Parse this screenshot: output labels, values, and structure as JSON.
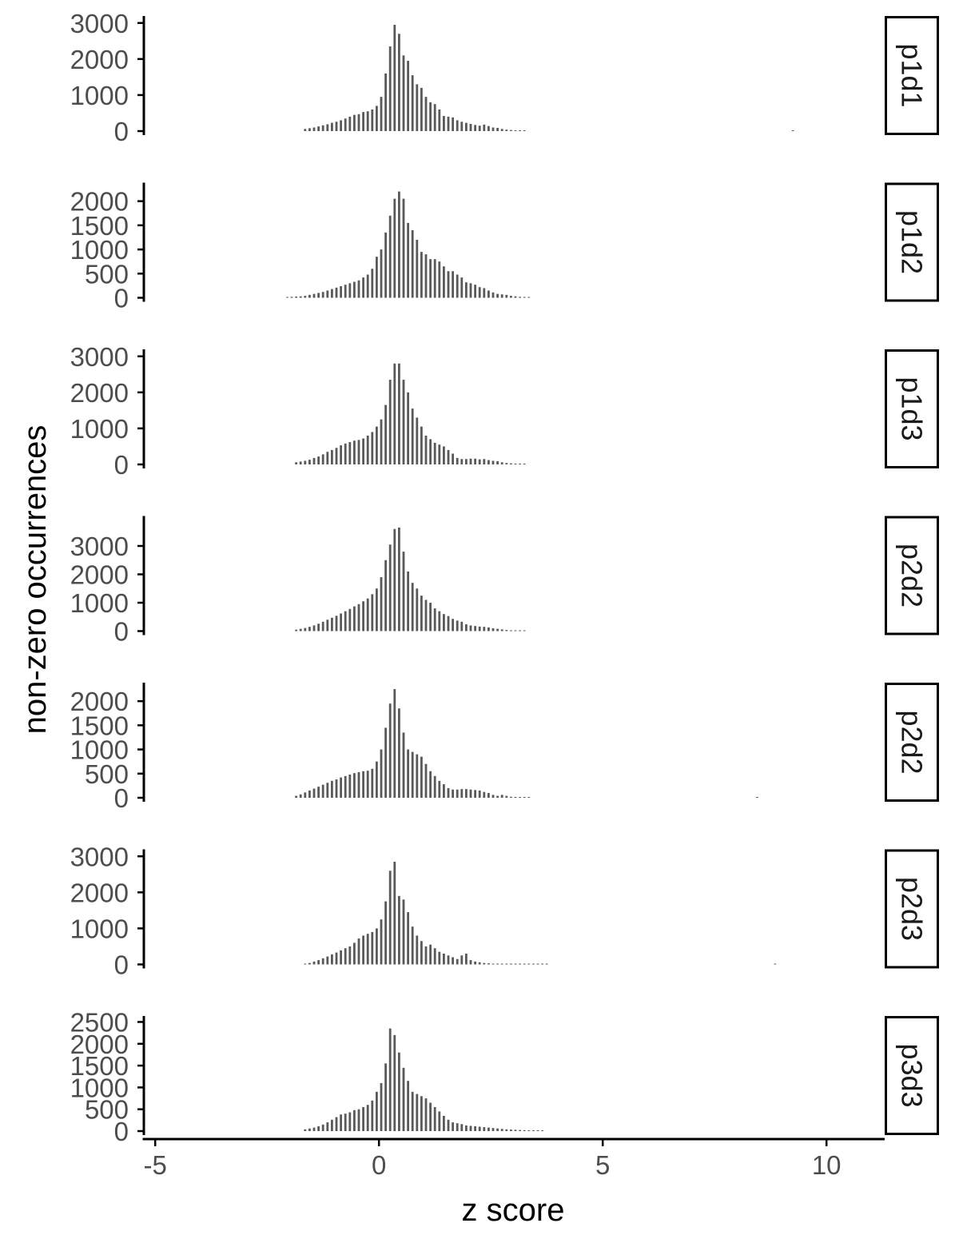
{
  "chart_data": {
    "type": "bar",
    "subtype": "faceted-histogram",
    "xlabel": "z score",
    "ylabel": "non-zero occurrences",
    "xlim": [
      -5.2,
      11.3
    ],
    "x_ticks": [
      -5,
      0,
      5,
      10
    ],
    "x_tick_labels": [
      "-5",
      "0",
      "5",
      "10"
    ],
    "bin_width": 0.1,
    "bar_color": "#595959",
    "strip_border_color": "#000000",
    "grid": false,
    "facets": [
      {
        "label": "p1d1",
        "ylim": [
          0,
          3150
        ],
        "y_ticks": [
          0,
          1000,
          2000,
          3000
        ],
        "y_tick_labels": [
          "0",
          "1000",
          "2000",
          "3000"
        ],
        "x": [
          -1.65,
          -1.55,
          -1.45,
          -1.35,
          -1.25,
          -1.15,
          -1.05,
          -0.95,
          -0.85,
          -0.75,
          -0.65,
          -0.55,
          -0.45,
          -0.35,
          -0.25,
          -0.15,
          -0.05,
          0.05,
          0.15,
          0.25,
          0.35,
          0.45,
          0.55,
          0.65,
          0.75,
          0.85,
          0.95,
          1.05,
          1.15,
          1.25,
          1.35,
          1.45,
          1.55,
          1.65,
          1.75,
          1.85,
          1.95,
          2.05,
          2.15,
          2.25,
          2.35,
          2.45,
          2.55,
          2.65,
          2.75,
          2.85,
          2.95,
          3.05,
          3.15,
          3.25,
          9.25
        ],
        "values": [
          60,
          80,
          100,
          130,
          160,
          190,
          230,
          260,
          300,
          350,
          400,
          450,
          470,
          530,
          550,
          600,
          700,
          950,
          1600,
          2350,
          2950,
          2700,
          2100,
          1950,
          1550,
          1300,
          1200,
          950,
          800,
          750,
          600,
          420,
          400,
          380,
          300,
          260,
          230,
          200,
          170,
          150,
          180,
          140,
          100,
          90,
          60,
          40,
          30,
          20,
          15,
          8,
          10
        ]
      },
      {
        "label": "p1d2",
        "ylim": [
          0,
          2350
        ],
        "y_ticks": [
          0,
          500,
          1000,
          1500,
          2000
        ],
        "y_tick_labels": [
          "0",
          "500",
          "1000",
          "1500",
          "2000"
        ],
        "x": [
          -2.05,
          -1.95,
          -1.85,
          -1.75,
          -1.65,
          -1.55,
          -1.45,
          -1.35,
          -1.25,
          -1.15,
          -1.05,
          -0.95,
          -0.85,
          -0.75,
          -0.65,
          -0.55,
          -0.45,
          -0.35,
          -0.25,
          -0.15,
          -0.05,
          0.05,
          0.15,
          0.25,
          0.35,
          0.45,
          0.55,
          0.65,
          0.75,
          0.85,
          0.95,
          1.05,
          1.15,
          1.25,
          1.35,
          1.45,
          1.55,
          1.65,
          1.75,
          1.85,
          1.95,
          2.05,
          2.15,
          2.25,
          2.35,
          2.45,
          2.55,
          2.65,
          2.75,
          2.85,
          2.95,
          3.05,
          3.15,
          3.25,
          3.35
        ],
        "values": [
          15,
          20,
          25,
          30,
          40,
          60,
          80,
          100,
          120,
          150,
          180,
          210,
          240,
          270,
          300,
          330,
          360,
          420,
          480,
          600,
          850,
          1000,
          1350,
          1700,
          2050,
          2200,
          2050,
          1550,
          1400,
          1200,
          950,
          900,
          800,
          800,
          750,
          650,
          550,
          550,
          480,
          420,
          320,
          300,
          270,
          220,
          200,
          150,
          110,
          80,
          70,
          60,
          40,
          30,
          20,
          15,
          10
        ]
      },
      {
        "label": "p1d3",
        "ylim": [
          0,
          3150
        ],
        "y_ticks": [
          0,
          1000,
          2000,
          3000
        ],
        "y_tick_labels": [
          "0",
          "1000",
          "2000",
          "3000"
        ],
        "x": [
          -1.85,
          -1.75,
          -1.65,
          -1.55,
          -1.45,
          -1.35,
          -1.25,
          -1.15,
          -1.05,
          -0.95,
          -0.85,
          -0.75,
          -0.65,
          -0.55,
          -0.45,
          -0.35,
          -0.25,
          -0.15,
          -0.05,
          0.05,
          0.15,
          0.25,
          0.35,
          0.45,
          0.55,
          0.65,
          0.75,
          0.85,
          0.95,
          1.05,
          1.15,
          1.25,
          1.35,
          1.45,
          1.55,
          1.65,
          1.75,
          1.85,
          1.95,
          2.05,
          2.15,
          2.25,
          2.35,
          2.45,
          2.55,
          2.65,
          2.75,
          2.85,
          2.95,
          3.05,
          3.15,
          3.25
        ],
        "values": [
          60,
          80,
          100,
          130,
          180,
          220,
          280,
          350,
          400,
          460,
          530,
          580,
          620,
          660,
          680,
          720,
          800,
          900,
          1050,
          1250,
          1650,
          2350,
          2800,
          2800,
          2350,
          2000,
          1550,
          1300,
          1050,
          800,
          700,
          600,
          550,
          500,
          400,
          300,
          180,
          150,
          150,
          160,
          160,
          140,
          150,
          120,
          100,
          90,
          60,
          40,
          30,
          20,
          15,
          10
        ]
      },
      {
        "label": "p2d2",
        "ylim": [
          0,
          4000
        ],
        "y_ticks": [
          0,
          1000,
          2000,
          3000
        ],
        "y_tick_labels": [
          "0",
          "1000",
          "2000",
          "3000"
        ],
        "x": [
          -1.85,
          -1.75,
          -1.65,
          -1.55,
          -1.45,
          -1.35,
          -1.25,
          -1.15,
          -1.05,
          -0.95,
          -0.85,
          -0.75,
          -0.65,
          -0.55,
          -0.45,
          -0.35,
          -0.25,
          -0.15,
          -0.05,
          0.05,
          0.15,
          0.25,
          0.35,
          0.45,
          0.55,
          0.65,
          0.75,
          0.85,
          0.95,
          1.05,
          1.15,
          1.25,
          1.35,
          1.45,
          1.55,
          1.65,
          1.75,
          1.85,
          1.95,
          2.05,
          2.15,
          2.25,
          2.35,
          2.45,
          2.55,
          2.65,
          2.75,
          2.85,
          2.95,
          3.05,
          3.15,
          3.25
        ],
        "values": [
          50,
          80,
          110,
          150,
          200,
          260,
          330,
          400,
          470,
          540,
          620,
          700,
          780,
          870,
          950,
          1050,
          1150,
          1300,
          1500,
          1900,
          2500,
          3050,
          3600,
          3650,
          2800,
          2100,
          1700,
          1500,
          1250,
          1100,
          1000,
          800,
          700,
          600,
          530,
          430,
          370,
          330,
          240,
          200,
          180,
          160,
          150,
          130,
          100,
          80,
          60,
          40,
          25,
          15,
          10,
          8
        ]
      },
      {
        "label": "p2d2",
        "ylim": [
          0,
          2350
        ],
        "y_ticks": [
          0,
          500,
          1000,
          1500,
          2000
        ],
        "y_tick_labels": [
          "0",
          "500",
          "1000",
          "1500",
          "2000"
        ],
        "x": [
          -1.85,
          -1.75,
          -1.65,
          -1.55,
          -1.45,
          -1.35,
          -1.25,
          -1.15,
          -1.05,
          -0.95,
          -0.85,
          -0.75,
          -0.65,
          -0.55,
          -0.45,
          -0.35,
          -0.25,
          -0.15,
          -0.05,
          0.05,
          0.15,
          0.25,
          0.35,
          0.45,
          0.55,
          0.65,
          0.75,
          0.85,
          0.95,
          1.05,
          1.15,
          1.25,
          1.35,
          1.45,
          1.55,
          1.65,
          1.75,
          1.85,
          1.95,
          2.05,
          2.15,
          2.25,
          2.35,
          2.45,
          2.55,
          2.65,
          2.75,
          2.85,
          2.95,
          3.05,
          3.15,
          3.25,
          3.35,
          8.45
        ],
        "values": [
          40,
          70,
          110,
          150,
          190,
          230,
          270,
          310,
          350,
          380,
          420,
          450,
          480,
          510,
          530,
          550,
          560,
          600,
          750,
          1000,
          1450,
          1950,
          2250,
          1850,
          1350,
          1000,
          950,
          900,
          850,
          700,
          550,
          450,
          350,
          280,
          200,
          170,
          170,
          180,
          180,
          170,
          160,
          150,
          120,
          100,
          60,
          40,
          60,
          40,
          20,
          15,
          10,
          8,
          6,
          6
        ]
      },
      {
        "label": "p2d3",
        "ylim": [
          0,
          3150
        ],
        "y_ticks": [
          0,
          1000,
          2000,
          3000
        ],
        "y_tick_labels": [
          "0",
          "1000",
          "2000",
          "3000"
        ],
        "x": [
          -1.65,
          -1.55,
          -1.45,
          -1.35,
          -1.25,
          -1.15,
          -1.05,
          -0.95,
          -0.85,
          -0.75,
          -0.65,
          -0.55,
          -0.45,
          -0.35,
          -0.25,
          -0.15,
          -0.05,
          0.05,
          0.15,
          0.25,
          0.35,
          0.45,
          0.55,
          0.65,
          0.75,
          0.85,
          0.95,
          1.05,
          1.15,
          1.25,
          1.35,
          1.45,
          1.55,
          1.65,
          1.75,
          1.85,
          1.95,
          2.05,
          2.15,
          2.25,
          2.35,
          2.45,
          2.55,
          2.65,
          2.75,
          2.85,
          2.95,
          3.05,
          3.15,
          3.25,
          3.35,
          3.45,
          3.55,
          3.65,
          3.75,
          8.85
        ],
        "values": [
          20,
          40,
          80,
          120,
          170,
          220,
          280,
          330,
          390,
          450,
          500,
          600,
          720,
          800,
          850,
          900,
          1000,
          1250,
          1750,
          2600,
          2850,
          1900,
          1800,
          1450,
          1050,
          800,
          650,
          500,
          550,
          450,
          350,
          300,
          250,
          200,
          150,
          250,
          300,
          120,
          80,
          60,
          40,
          30,
          20,
          15,
          10,
          10,
          8,
          8,
          6,
          5,
          5,
          4,
          4,
          4,
          4,
          6
        ]
      },
      {
        "label": "p3d3",
        "ylim": [
          0,
          2600
        ],
        "y_ticks": [
          0,
          500,
          1000,
          1500,
          2000,
          2500
        ],
        "y_tick_labels": [
          "0",
          "500",
          "1000",
          "1500",
          "2000",
          "2500"
        ],
        "x": [
          -1.65,
          -1.55,
          -1.45,
          -1.35,
          -1.25,
          -1.15,
          -1.05,
          -0.95,
          -0.85,
          -0.75,
          -0.65,
          -0.55,
          -0.45,
          -0.35,
          -0.25,
          -0.15,
          -0.05,
          0.05,
          0.15,
          0.25,
          0.35,
          0.45,
          0.55,
          0.65,
          0.75,
          0.85,
          0.95,
          1.05,
          1.15,
          1.25,
          1.35,
          1.45,
          1.55,
          1.65,
          1.75,
          1.85,
          1.95,
          2.05,
          2.15,
          2.25,
          2.35,
          2.45,
          2.55,
          2.65,
          2.75,
          2.85,
          2.95,
          3.05,
          3.15,
          3.25,
          3.35,
          3.45,
          3.55,
          3.65
        ],
        "values": [
          40,
          60,
          80,
          110,
          150,
          200,
          260,
          320,
          380,
          400,
          430,
          480,
          500,
          550,
          600,
          700,
          900,
          1100,
          1550,
          2350,
          2200,
          1800,
          1450,
          1150,
          900,
          850,
          800,
          750,
          650,
          550,
          450,
          350,
          260,
          200,
          180,
          160,
          130,
          120,
          110,
          100,
          90,
          80,
          70,
          60,
          50,
          40,
          35,
          30,
          25,
          20,
          15,
          10,
          8,
          5
        ]
      }
    ]
  }
}
